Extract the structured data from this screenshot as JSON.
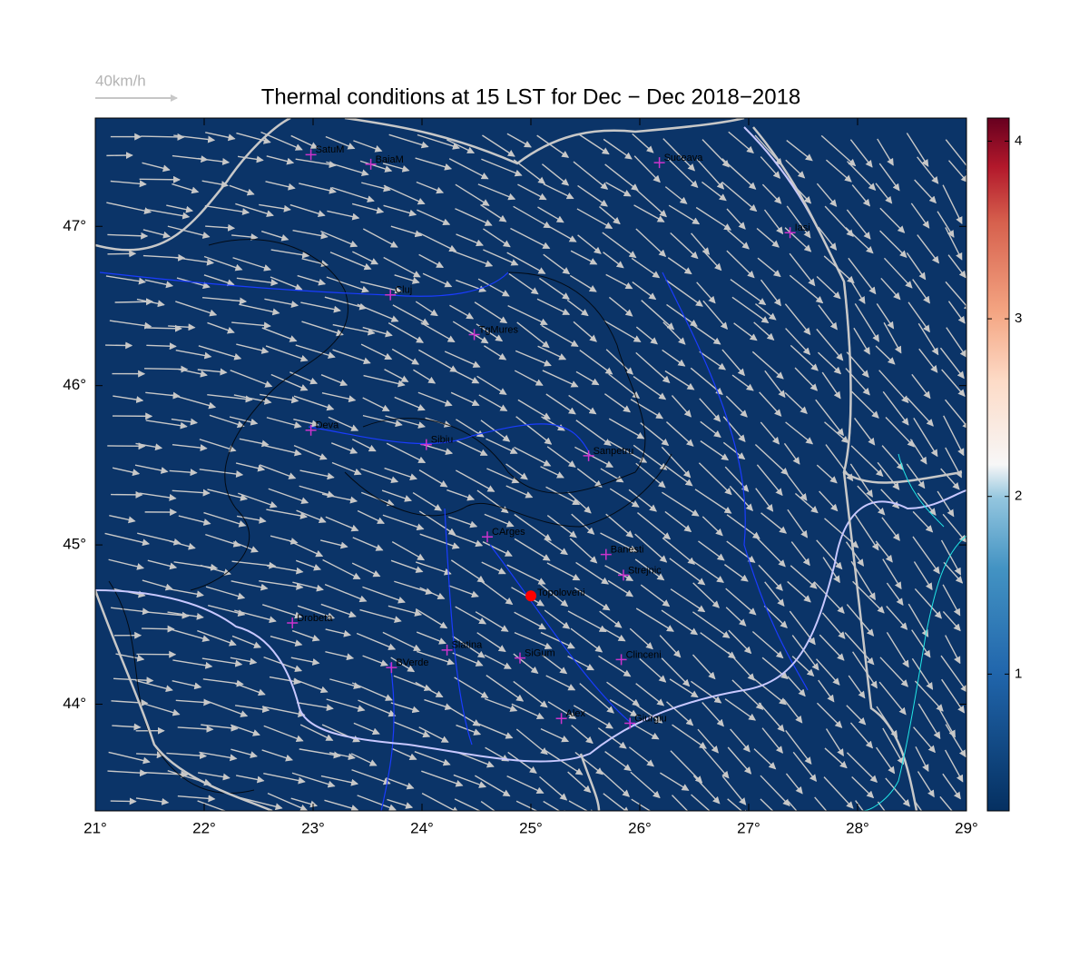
{
  "chart_data": {
    "type": "map",
    "title": "Thermal conditions at 15 LST for Dec − Dec  2018−2018",
    "scale_label": "40km/h",
    "xlim": [
      21,
      29
    ],
    "ylim": [
      43.33,
      47.68
    ],
    "xticks": [
      {
        "value": 21,
        "label": "21°"
      },
      {
        "value": 22,
        "label": "22°"
      },
      {
        "value": 23,
        "label": "23°"
      },
      {
        "value": 24,
        "label": "24°"
      },
      {
        "value": 25,
        "label": "25°"
      },
      {
        "value": 26,
        "label": "26°"
      },
      {
        "value": 27,
        "label": "27°"
      },
      {
        "value": 28,
        "label": "28°"
      },
      {
        "value": 29,
        "label": "29°"
      }
    ],
    "yticks": [
      {
        "value": 44,
        "label": "44°"
      },
      {
        "value": 45,
        "label": "45°"
      },
      {
        "value": 46,
        "label": "46°"
      },
      {
        "value": 47,
        "label": "47°"
      }
    ],
    "clim": [
      0.23,
      4.13
    ],
    "cticks": [
      1,
      2,
      3,
      4
    ],
    "background_color": "#0b3468",
    "city_color": "#cc33cc",
    "cities": [
      {
        "name": "SatuM",
        "lon": 22.98,
        "lat": 47.45
      },
      {
        "name": "BaiaM",
        "lon": 23.53,
        "lat": 47.39
      },
      {
        "name": "Suceava",
        "lon": 26.18,
        "lat": 47.4
      },
      {
        "name": "Iasi",
        "lon": 27.38,
        "lat": 46.96
      },
      {
        "name": "Cluj",
        "lon": 23.71,
        "lat": 46.57
      },
      {
        "name": "TgMures",
        "lon": 24.48,
        "lat": 46.32
      },
      {
        "name": "Deva",
        "lon": 22.98,
        "lat": 45.72
      },
      {
        "name": "Sibiu",
        "lon": 24.04,
        "lat": 45.63
      },
      {
        "name": "Sanpetru",
        "lon": 25.53,
        "lat": 45.56
      },
      {
        "name": "CArges",
        "lon": 24.6,
        "lat": 45.05
      },
      {
        "name": "Banesti",
        "lon": 25.69,
        "lat": 44.94
      },
      {
        "name": "Strejnic",
        "lon": 25.85,
        "lat": 44.81
      },
      {
        "name": "Drobeta",
        "lon": 22.81,
        "lat": 44.51
      },
      {
        "name": "Slatina",
        "lon": 24.23,
        "lat": 44.34
      },
      {
        "name": "BVerde",
        "lon": 23.72,
        "lat": 44.23
      },
      {
        "name": "SiGum",
        "lon": 24.9,
        "lat": 44.29
      },
      {
        "name": "Clinceni",
        "lon": 25.83,
        "lat": 44.28
      },
      {
        "name": "Alex",
        "lon": 25.28,
        "lat": 43.91
      },
      {
        "name": "Giurgiu",
        "lon": 25.91,
        "lat": 43.88
      }
    ],
    "station": {
      "name": "Topoloveni",
      "lon": 25.0,
      "lat": 44.68,
      "color": "#ff0000"
    }
  }
}
